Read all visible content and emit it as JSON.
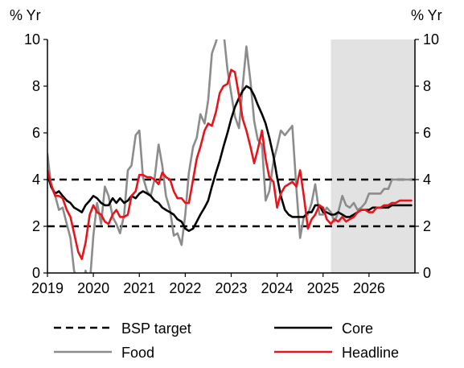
{
  "chart_data": {
    "type": "line",
    "y_unit_left": "% Yr",
    "y_unit_right": "% Yr",
    "ylim": [
      0,
      10
    ],
    "y_ticks": [
      0,
      2,
      4,
      6,
      8,
      10
    ],
    "xlim": [
      2019,
      2027
    ],
    "x_ticks": [
      2019,
      2020,
      2021,
      2022,
      2023,
      2024,
      2025,
      2026
    ],
    "x_tick_labels": [
      "2019",
      "2020",
      "2021",
      "2022",
      "2023",
      "2024",
      "2025",
      "2026"
    ],
    "forecast_shading": {
      "start": 2025.17,
      "end": 2027.0,
      "color": "#e2e2e2"
    },
    "reference_lines": [
      {
        "y": 4,
        "style": "dashed",
        "color": "#000000"
      },
      {
        "y": 2,
        "style": "dashed",
        "color": "#000000"
      }
    ],
    "legend": [
      {
        "label": "BSP target",
        "style": "dashed",
        "color": "#000000"
      },
      {
        "label": "Core",
        "style": "solid",
        "color": "#000000"
      },
      {
        "label": "Food",
        "style": "solid",
        "color": "#8c8c8c"
      },
      {
        "label": "Headline",
        "style": "solid",
        "color": "#e8141b"
      }
    ],
    "series": [
      {
        "name": "Food",
        "color": "#8c8c8c",
        "x": [
          2019.0,
          2019.08,
          2019.17,
          2019.25,
          2019.33,
          2019.42,
          2019.5,
          2019.58,
          2019.67,
          2019.75,
          2019.83,
          2019.92,
          2020.0,
          2020.08,
          2020.17,
          2020.25,
          2020.33,
          2020.42,
          2020.5,
          2020.58,
          2020.67,
          2020.75,
          2020.83,
          2020.92,
          2021.0,
          2021.08,
          2021.17,
          2021.25,
          2021.33,
          2021.42,
          2021.5,
          2021.58,
          2021.67,
          2021.75,
          2021.83,
          2021.92,
          2022.0,
          2022.08,
          2022.17,
          2022.25,
          2022.33,
          2022.42,
          2022.5,
          2022.58,
          2022.67,
          2022.75,
          2022.83,
          2022.92,
          2023.0,
          2023.08,
          2023.17,
          2023.25,
          2023.33,
          2023.42,
          2023.5,
          2023.58,
          2023.67,
          2023.75,
          2023.83,
          2023.92,
          2024.0,
          2024.08,
          2024.17,
          2024.25,
          2024.33,
          2024.42,
          2024.5,
          2024.58,
          2024.67,
          2024.75,
          2024.83,
          2024.92,
          2025.0,
          2025.08,
          2025.17,
          2025.25,
          2025.33,
          2025.42,
          2025.5,
          2025.58,
          2025.67,
          2025.75,
          2025.83,
          2025.92,
          2026.0,
          2026.08,
          2026.17,
          2026.25,
          2026.33,
          2026.42,
          2026.5,
          2026.58,
          2026.67,
          2026.75,
          2026.83,
          2026.92
        ],
        "values": [
          5.1,
          3.7,
          3.3,
          2.7,
          2.8,
          2.1,
          1.5,
          0.1,
          -0.5,
          -0.8,
          0.1,
          -0.5,
          1.6,
          3.0,
          2.1,
          3.7,
          3.3,
          2.4,
          2.1,
          1.7,
          2.5,
          4.4,
          4.6,
          5.9,
          6.1,
          4.1,
          3.5,
          3.3,
          4.0,
          5.5,
          4.6,
          3.3,
          2.7,
          1.6,
          1.7,
          1.2,
          2.5,
          4.3,
          5.4,
          5.8,
          6.8,
          6.4,
          7.4,
          9.4,
          9.9,
          10.5,
          10.4,
          8.7,
          7.7,
          6.7,
          6.2,
          8.0,
          9.7,
          8.2,
          6.5,
          5.7,
          5.5,
          3.1,
          3.5,
          4.8,
          5.4,
          6.1,
          5.9,
          6.1,
          6.3,
          3.6,
          1.5,
          2.4,
          2.5,
          3.0,
          3.8,
          2.5,
          2.5,
          2.8,
          2.6,
          2.2,
          2.6,
          3.3,
          2.9,
          2.8,
          3.0,
          2.7,
          2.8,
          3.0,
          3.4,
          3.4,
          3.4,
          3.4,
          3.6,
          3.6,
          4.0,
          4.0,
          4.0,
          4.0,
          4.0,
          4.0
        ]
      },
      {
        "name": "Core",
        "color": "#000000",
        "x": [
          2019.0,
          2019.08,
          2019.17,
          2019.25,
          2019.33,
          2019.42,
          2019.5,
          2019.58,
          2019.67,
          2019.75,
          2019.83,
          2019.92,
          2020.0,
          2020.08,
          2020.17,
          2020.25,
          2020.33,
          2020.42,
          2020.5,
          2020.58,
          2020.67,
          2020.75,
          2020.83,
          2020.92,
          2021.0,
          2021.08,
          2021.17,
          2021.25,
          2021.33,
          2021.42,
          2021.5,
          2021.58,
          2021.67,
          2021.75,
          2021.83,
          2021.92,
          2022.0,
          2022.08,
          2022.17,
          2022.25,
          2022.33,
          2022.42,
          2022.5,
          2022.58,
          2022.67,
          2022.75,
          2022.83,
          2022.92,
          2023.0,
          2023.08,
          2023.17,
          2023.25,
          2023.33,
          2023.42,
          2023.5,
          2023.58,
          2023.67,
          2023.75,
          2023.83,
          2023.92,
          2024.0,
          2024.08,
          2024.17,
          2024.25,
          2024.33,
          2024.42,
          2024.5,
          2024.58,
          2024.67,
          2024.75,
          2024.83,
          2024.92,
          2025.0,
          2025.08,
          2025.17,
          2025.25,
          2025.33,
          2025.42,
          2025.5,
          2025.58,
          2025.67,
          2025.75,
          2025.83,
          2025.92,
          2026.0,
          2026.08,
          2026.17,
          2026.25,
          2026.33,
          2026.42,
          2026.5,
          2026.58,
          2026.67,
          2026.75,
          2026.83,
          2026.92
        ],
        "values": [
          4.2,
          3.7,
          3.4,
          3.5,
          3.3,
          3.1,
          3.0,
          2.8,
          2.7,
          2.6,
          2.9,
          3.1,
          3.3,
          3.2,
          3.0,
          2.9,
          2.9,
          3.2,
          3.0,
          3.2,
          3.0,
          3.1,
          3.3,
          3.2,
          3.4,
          3.5,
          3.4,
          3.3,
          3.1,
          3.0,
          2.8,
          2.7,
          2.6,
          2.5,
          2.3,
          2.2,
          1.9,
          1.8,
          1.9,
          2.2,
          2.5,
          2.8,
          3.1,
          3.7,
          4.3,
          4.8,
          5.4,
          6.0,
          6.6,
          7.1,
          7.5,
          7.8,
          8.0,
          7.9,
          7.6,
          7.2,
          6.8,
          6.4,
          5.8,
          5.0,
          4.1,
          3.3,
          2.7,
          2.5,
          2.4,
          2.4,
          2.4,
          2.4,
          2.6,
          2.6,
          2.9,
          2.9,
          2.6,
          2.6,
          2.5,
          2.5,
          2.6,
          2.5,
          2.4,
          2.4,
          2.5,
          2.6,
          2.7,
          2.7,
          2.7,
          2.8,
          2.8,
          2.8,
          2.8,
          2.8,
          2.9,
          2.9,
          2.9,
          2.9,
          2.9,
          2.9
        ]
      },
      {
        "name": "Headline",
        "color": "#e8141b",
        "x": [
          2019.0,
          2019.08,
          2019.17,
          2019.25,
          2019.33,
          2019.42,
          2019.5,
          2019.58,
          2019.67,
          2019.75,
          2019.83,
          2019.92,
          2020.0,
          2020.08,
          2020.17,
          2020.25,
          2020.33,
          2020.42,
          2020.5,
          2020.58,
          2020.67,
          2020.75,
          2020.83,
          2020.92,
          2021.0,
          2021.08,
          2021.17,
          2021.25,
          2021.33,
          2021.42,
          2021.5,
          2021.58,
          2021.67,
          2021.75,
          2021.83,
          2021.92,
          2022.0,
          2022.08,
          2022.17,
          2022.25,
          2022.33,
          2022.42,
          2022.5,
          2022.58,
          2022.67,
          2022.75,
          2022.83,
          2022.92,
          2023.0,
          2023.08,
          2023.17,
          2023.25,
          2023.33,
          2023.42,
          2023.5,
          2023.58,
          2023.67,
          2023.75,
          2023.83,
          2023.92,
          2024.0,
          2024.08,
          2024.17,
          2024.25,
          2024.33,
          2024.42,
          2024.5,
          2024.58,
          2024.67,
          2024.75,
          2024.83,
          2024.92,
          2025.0,
          2025.08,
          2025.17,
          2025.25,
          2025.33,
          2025.42,
          2025.5,
          2025.58,
          2025.67,
          2025.75,
          2025.83,
          2025.92,
          2026.0,
          2026.08,
          2026.17,
          2026.25,
          2026.33,
          2026.42,
          2026.5,
          2026.58,
          2026.67,
          2026.75,
          2026.83,
          2026.92
        ],
        "values": [
          4.4,
          3.8,
          3.3,
          3.3,
          3.2,
          2.7,
          2.4,
          1.7,
          0.9,
          0.6,
          1.3,
          2.5,
          2.9,
          2.6,
          2.5,
          2.2,
          2.1,
          2.5,
          2.7,
          2.4,
          2.4,
          2.5,
          3.3,
          3.5,
          4.2,
          4.2,
          4.1,
          4.1,
          4.0,
          3.8,
          4.3,
          4.1,
          4.0,
          3.5,
          3.2,
          3.2,
          3.0,
          3.0,
          4.0,
          4.9,
          5.4,
          6.1,
          6.4,
          6.3,
          6.9,
          7.7,
          8.0,
          8.1,
          8.7,
          8.6,
          7.6,
          6.6,
          6.1,
          5.4,
          4.7,
          5.3,
          6.1,
          4.9,
          4.1,
          3.9,
          2.8,
          3.4,
          3.7,
          3.8,
          3.9,
          3.7,
          4.4,
          3.3,
          1.9,
          2.3,
          2.5,
          2.9,
          2.8,
          2.3,
          2.1,
          2.3,
          2.2,
          2.4,
          2.2,
          2.3,
          2.4,
          2.6,
          2.7,
          2.7,
          2.6,
          2.6,
          2.8,
          2.8,
          2.9,
          2.9,
          3.0,
          3.0,
          3.1,
          3.1,
          3.1,
          3.1
        ]
      }
    ]
  }
}
